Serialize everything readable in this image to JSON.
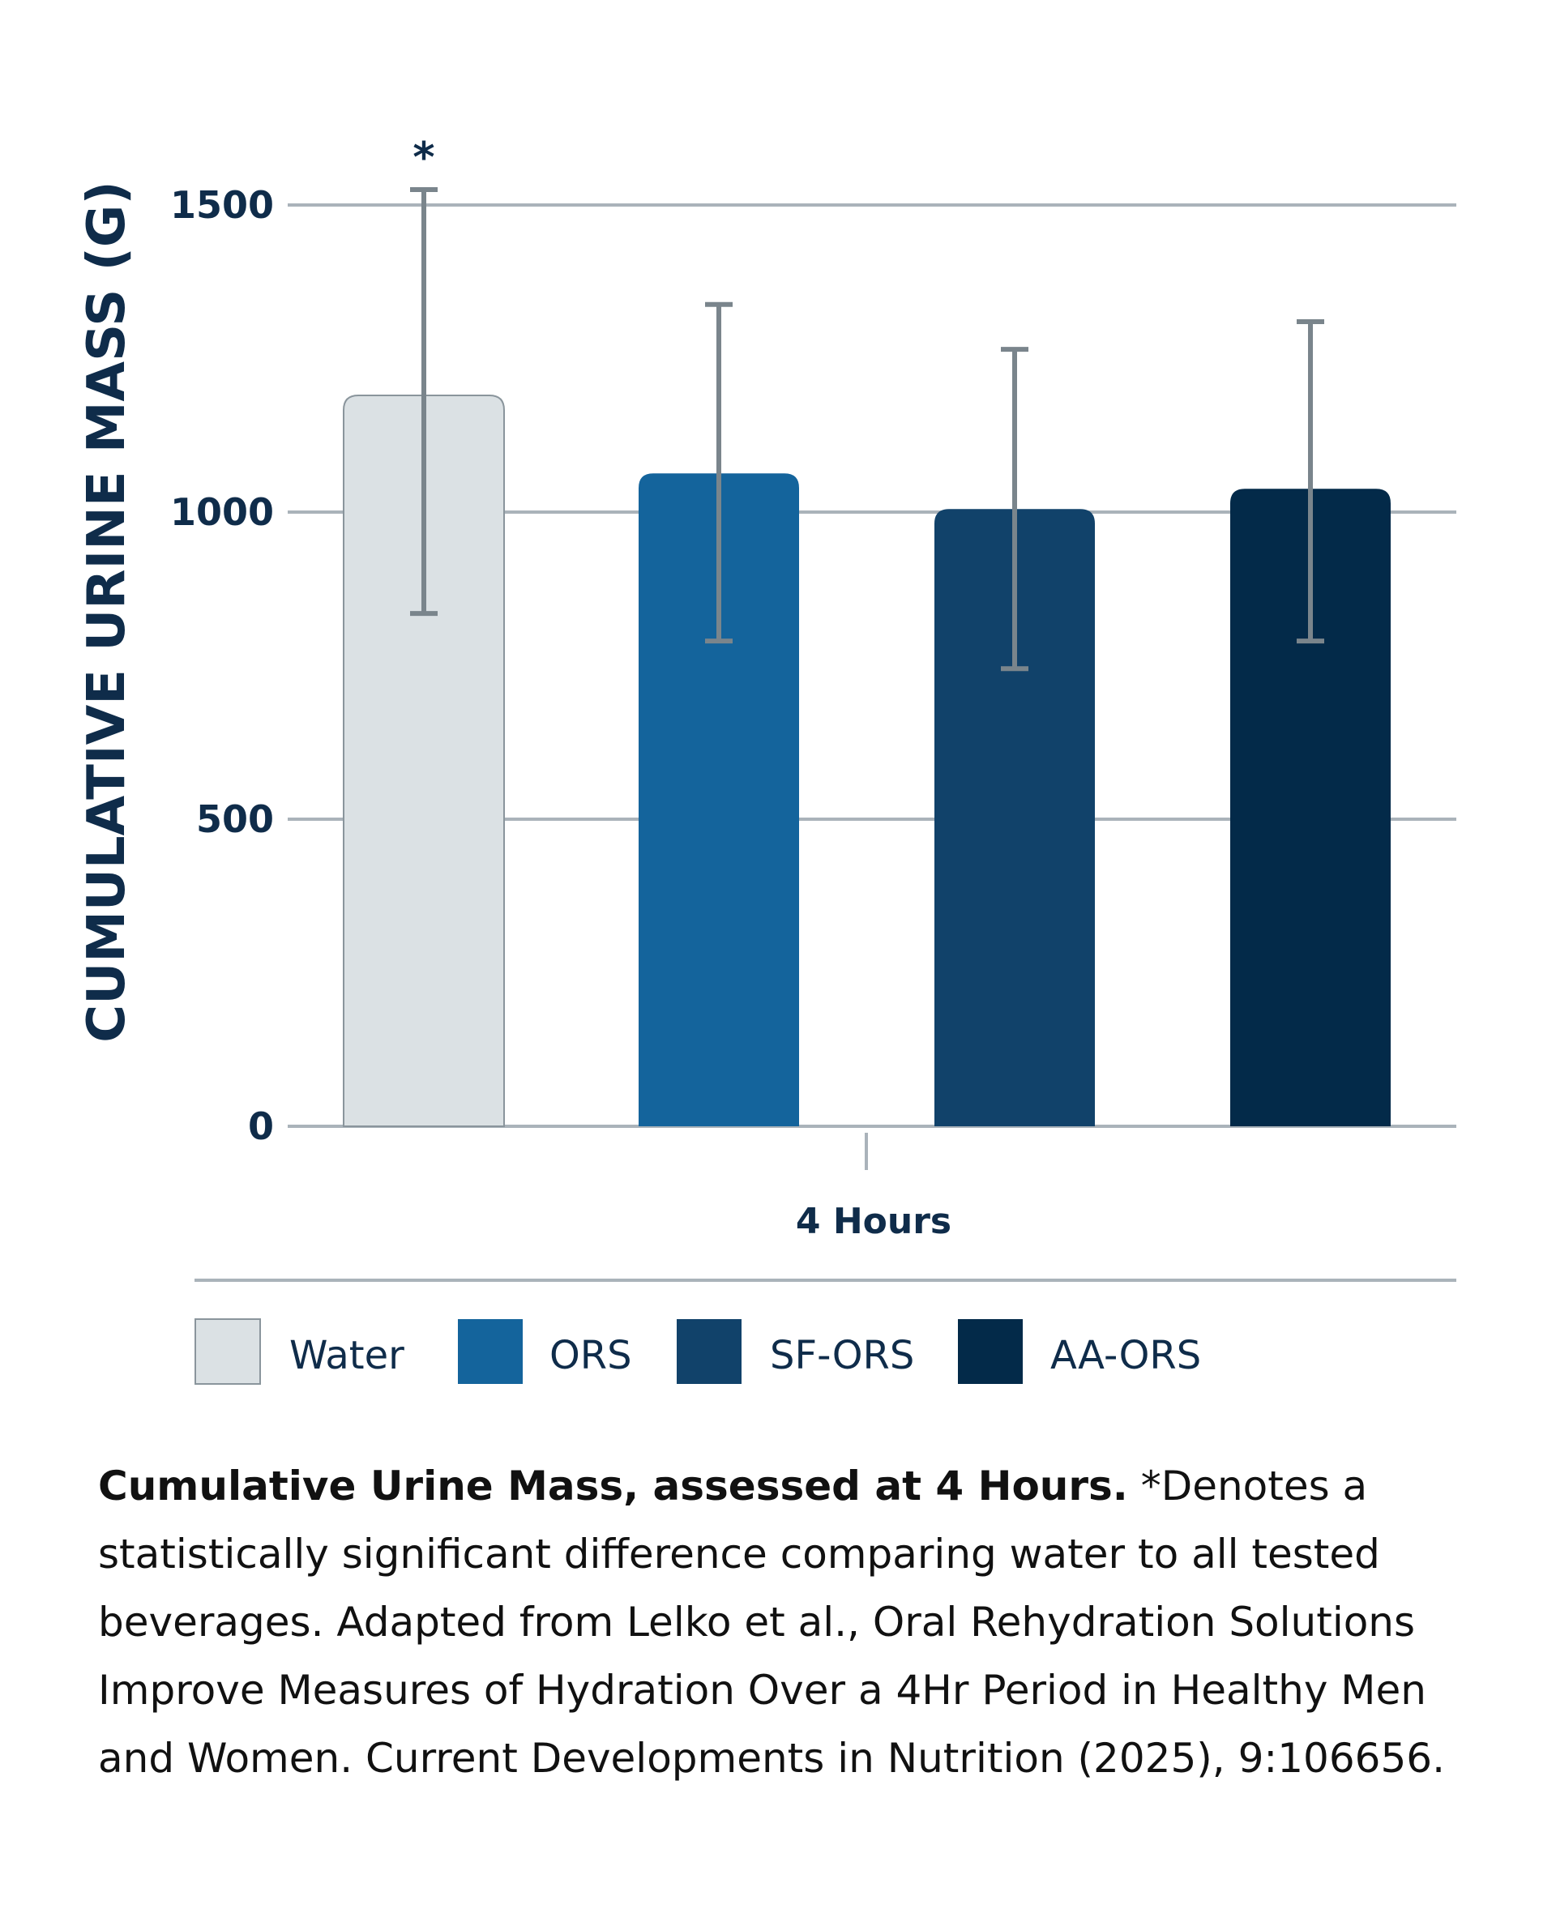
{
  "chart_data": {
    "type": "bar",
    "ylabel": "CUMULATIVE URINE MASS (G)",
    "ylim": [
      0,
      1500
    ],
    "yticks": [
      0,
      500,
      1000,
      1500
    ],
    "grid": true,
    "categories": [
      "4 Hours"
    ],
    "xlabel": "",
    "legend_position": "bottom",
    "series": [
      {
        "name": "Water",
        "values": [
          1190
        ],
        "error": [
          {
            "low": 835,
            "high": 1525
          }
        ],
        "color": "#dbe1e4",
        "annotation": "*"
      },
      {
        "name": "ORS",
        "values": [
          1063
        ],
        "error": [
          {
            "low": 790,
            "high": 1338
          }
        ],
        "color": "#14649c"
      },
      {
        "name": "SF-ORS",
        "values": [
          1005
        ],
        "error": [
          {
            "low": 745,
            "high": 1265
          }
        ],
        "color": "#11426a"
      },
      {
        "name": "AA-ORS",
        "values": [
          1038
        ],
        "error": [
          {
            "low": 790,
            "high": 1310
          }
        ],
        "color": "#032a49"
      }
    ],
    "colors": {
      "text": "#0f2c4a",
      "grid": "#aab3ba",
      "error_bar": "#7a858c"
    }
  },
  "caption": {
    "bold": "Cumulative Urine Mass, assessed at 4 Hours.",
    "text": " *Denotes a statistically significant difference comparing water to all tested beverages. Adapted from Lelko et al., Oral Rehydration Solutions Improve Measures of Hydration Over a 4Hr Period in Healthy Men and Women. Current Developments in Nutrition (2025), 9:106656."
  }
}
